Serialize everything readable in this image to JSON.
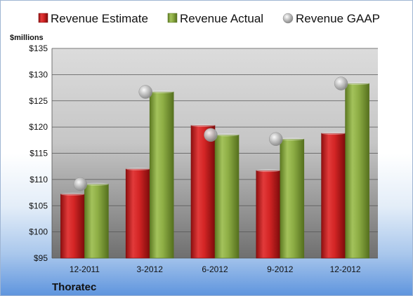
{
  "company": "Thoratec",
  "chart_data": {
    "type": "bar",
    "unit_label": "$millions",
    "categories": [
      "12-2011",
      "3-2012",
      "6-2012",
      "9-2012",
      "12-2012"
    ],
    "series": [
      {
        "name": "Revenue Estimate",
        "kind": "bar",
        "color": "#cc1f1f",
        "values": [
          107.2,
          112.0,
          120.3,
          111.7,
          118.8
        ]
      },
      {
        "name": "Revenue Actual",
        "kind": "bar",
        "color": "#86a43e",
        "values": [
          109.1,
          126.7,
          118.5,
          117.7,
          128.3
        ]
      },
      {
        "name": "Revenue GAAP",
        "kind": "marker",
        "color": "#b7b7b7",
        "values": [
          109.1,
          126.7,
          118.5,
          117.7,
          128.3
        ]
      }
    ],
    "ylim": [
      95,
      135
    ],
    "y_ticks": [
      95,
      100,
      105,
      110,
      115,
      120,
      125,
      130,
      135
    ],
    "y_tick_labels": [
      "$95",
      "$100",
      "$105",
      "$110",
      "$115",
      "$120",
      "$125",
      "$130",
      "$135"
    ],
    "grid": true,
    "legend_position": "top"
  }
}
